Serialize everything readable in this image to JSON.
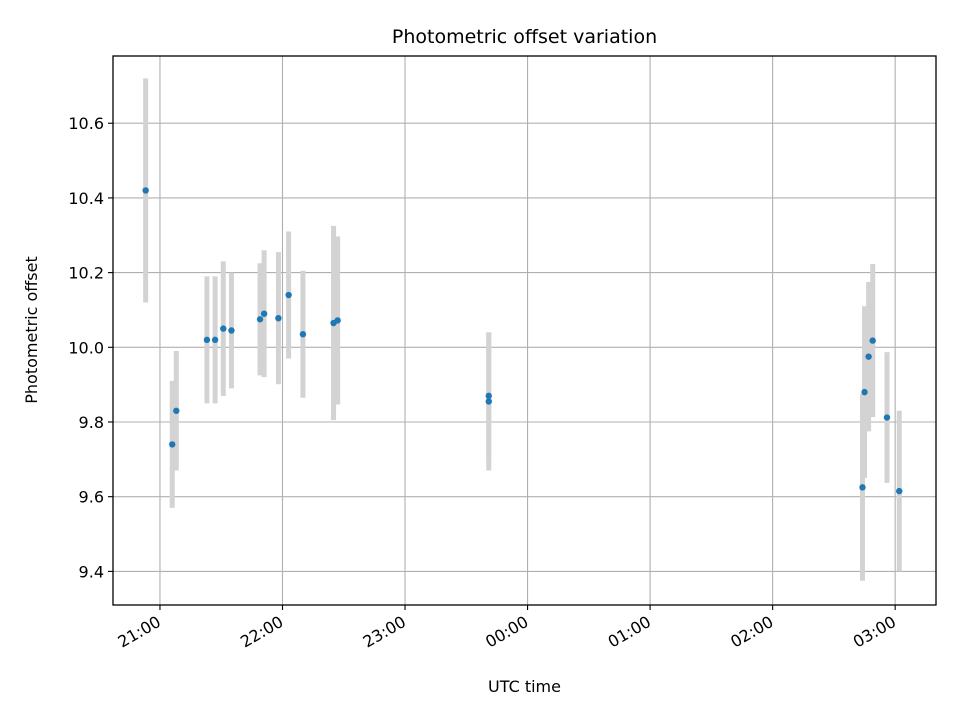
{
  "chart_data": {
    "type": "scatter",
    "title": "Photometric offset variation",
    "xlabel": "UTC time",
    "ylabel": "Photometric offset",
    "x_axis_type": "time",
    "xlim": [
      "20:37",
      "03:20"
    ],
    "ylim": [
      9.31,
      10.78
    ],
    "grid": true,
    "x_ticks": [
      {
        "time": "21:00",
        "label": "21:00"
      },
      {
        "time": "22:00",
        "label": "22:00"
      },
      {
        "time": "23:00",
        "label": "23:00"
      },
      {
        "time": "00:00",
        "label": "00:00"
      },
      {
        "time": "01:00",
        "label": "01:00"
      },
      {
        "time": "02:00",
        "label": "02:00"
      },
      {
        "time": "03:00",
        "label": "03:00"
      }
    ],
    "y_ticks": [
      {
        "value": 9.4,
        "label": "9.4"
      },
      {
        "value": 9.6,
        "label": "9.6"
      },
      {
        "value": 9.8,
        "label": "9.8"
      },
      {
        "value": 10.0,
        "label": "10.0"
      },
      {
        "value": 10.2,
        "label": "10.2"
      },
      {
        "value": 10.4,
        "label": "10.4"
      },
      {
        "value": 10.6,
        "label": "10.6"
      }
    ],
    "marker_color": "#1f77b4",
    "errorbar_color": "#d3d3d3",
    "points": [
      {
        "x": "20:53",
        "y": 10.42,
        "err": 0.3
      },
      {
        "x": "21:06",
        "y": 9.74,
        "err": 0.17
      },
      {
        "x": "21:08",
        "y": 9.83,
        "err": 0.16
      },
      {
        "x": "21:23",
        "y": 10.02,
        "err": 0.17
      },
      {
        "x": "21:27",
        "y": 10.02,
        "err": 0.17
      },
      {
        "x": "21:31",
        "y": 10.05,
        "err": 0.18
      },
      {
        "x": "21:35",
        "y": 10.045,
        "err": 0.155
      },
      {
        "x": "21:49",
        "y": 10.075,
        "err": 0.15
      },
      {
        "x": "21:51",
        "y": 10.09,
        "err": 0.17
      },
      {
        "x": "21:58",
        "y": 10.078,
        "err": 0.177
      },
      {
        "x": "22:03",
        "y": 10.14,
        "err": 0.17
      },
      {
        "x": "22:10",
        "y": 10.035,
        "err": 0.17
      },
      {
        "x": "22:25",
        "y": 10.065,
        "err": 0.26
      },
      {
        "x": "22:27",
        "y": 10.072,
        "err": 0.225
      },
      {
        "x": "23:41",
        "y": 9.855,
        "err": 0.185
      },
      {
        "x": "23:41",
        "y": 9.87,
        "err": 0.17
      },
      {
        "x": "02:44",
        "y": 9.625,
        "err": 0.25
      },
      {
        "x": "02:45",
        "y": 9.88,
        "err": 0.23
      },
      {
        "x": "02:47",
        "y": 9.975,
        "err": 0.2
      },
      {
        "x": "02:49",
        "y": 10.018,
        "err": 0.205
      },
      {
        "x": "02:56",
        "y": 9.812,
        "err": 0.175
      },
      {
        "x": "03:02",
        "y": 9.615,
        "err": 0.215
      }
    ]
  }
}
